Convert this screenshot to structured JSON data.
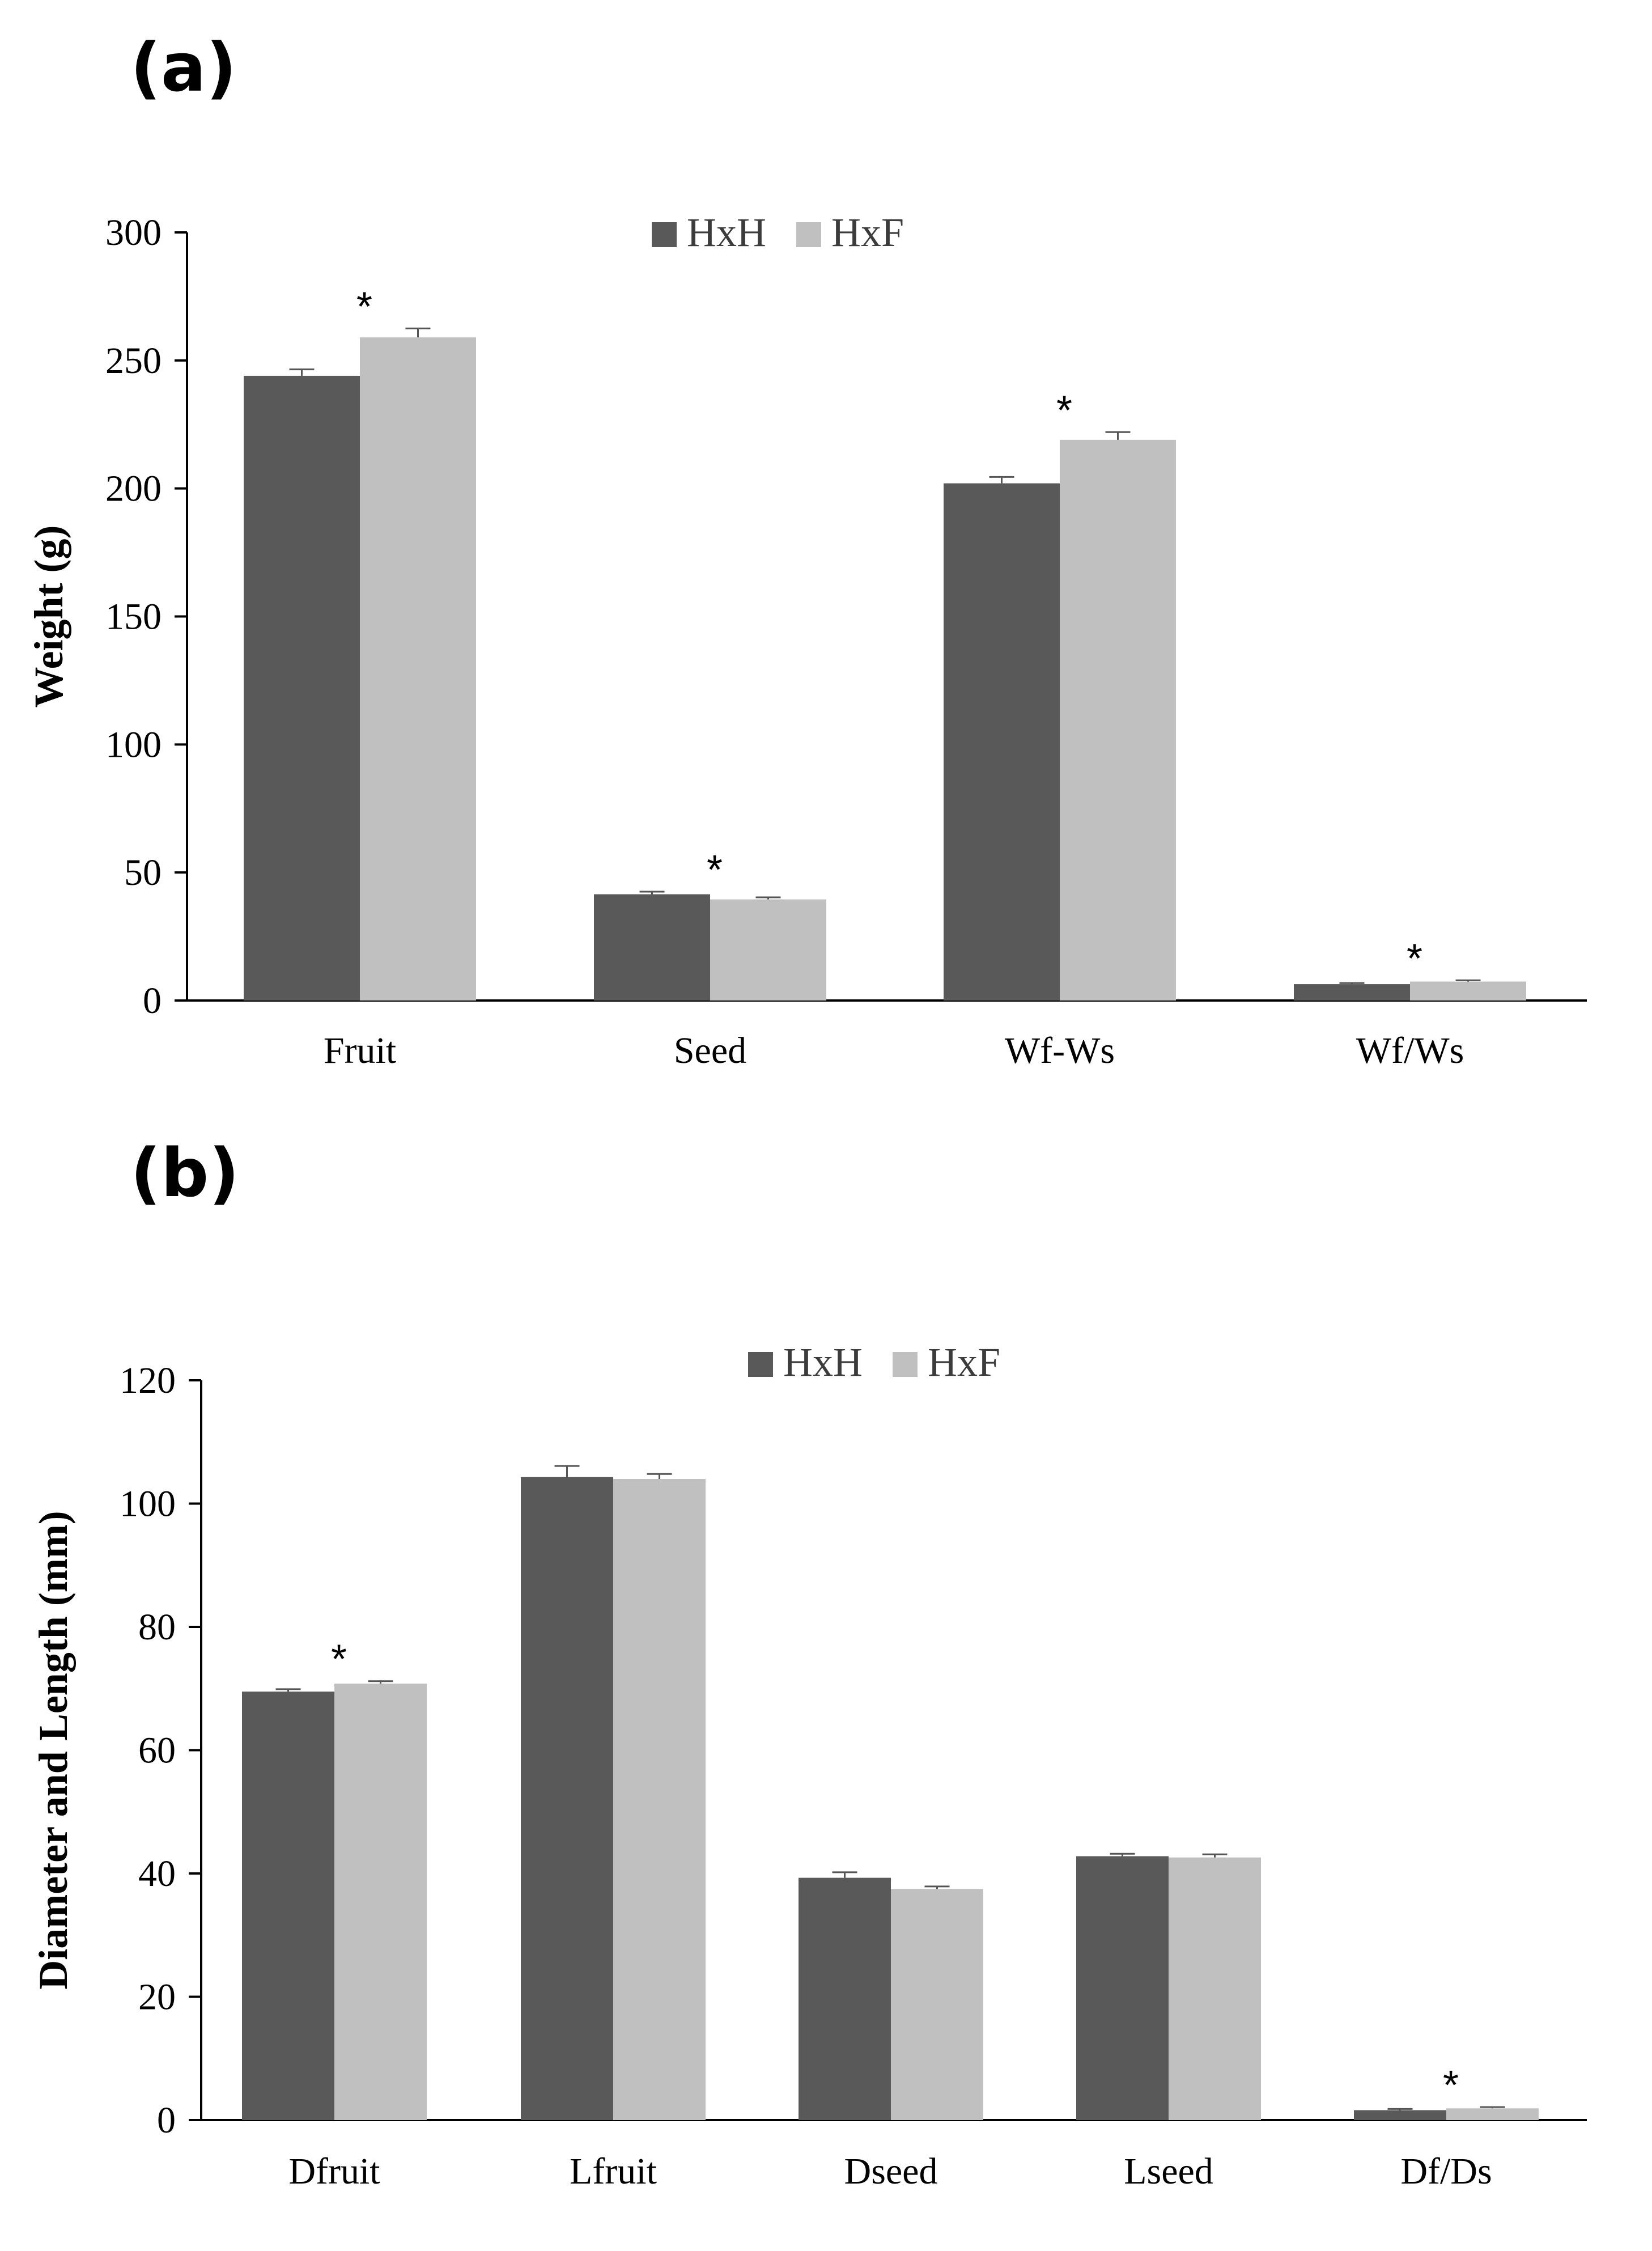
{
  "chart_data": [
    {
      "type": "bar",
      "panel_label": "(a)",
      "ylabel": "Weight (g)",
      "xlabel": "",
      "ylim": [
        0,
        300
      ],
      "yticks": [
        0,
        50,
        100,
        150,
        200,
        250,
        300
      ],
      "categories": [
        "Fruit",
        "Seed",
        "Wf-Ws",
        "Wf/Ws"
      ],
      "series": [
        {
          "name": "HxH",
          "color": "#595959",
          "values": [
            244,
            41.5,
            202,
            6.4
          ],
          "errors": [
            2.5,
            1.0,
            2.5,
            0.4
          ]
        },
        {
          "name": "HxF",
          "color": "#c0c0c0",
          "values": [
            259,
            39.5,
            219,
            7.4
          ],
          "errors": [
            3.5,
            0.8,
            3.0,
            0.5
          ]
        }
      ],
      "annotations": [
        {
          "category": "Fruit",
          "text": "*"
        },
        {
          "category": "Seed",
          "text": "*"
        },
        {
          "category": "Wf-Ws",
          "text": "*"
        },
        {
          "category": "Wf/Ws",
          "text": "*"
        }
      ],
      "legend_position": "top-center",
      "grid": false
    },
    {
      "type": "bar",
      "panel_label": "(b)",
      "ylabel": "Diameter and Length (mm)",
      "xlabel": "",
      "ylim": [
        0,
        120
      ],
      "yticks": [
        0,
        20,
        40,
        60,
        80,
        100,
        120
      ],
      "categories": [
        "Dfruit",
        "Lfruit",
        "Dseed",
        "Lseed",
        "Df/Ds"
      ],
      "series": [
        {
          "name": "HxH",
          "color": "#595959",
          "values": [
            69.5,
            104.3,
            39.3,
            42.8,
            1.6
          ],
          "errors": [
            0.4,
            1.8,
            0.9,
            0.4,
            0.2
          ]
        },
        {
          "name": "HxF",
          "color": "#c0c0c0",
          "values": [
            70.8,
            104.0,
            37.5,
            42.6,
            1.9
          ],
          "errors": [
            0.4,
            0.8,
            0.4,
            0.5,
            0.2
          ]
        }
      ],
      "annotations": [
        {
          "category": "Dfruit",
          "text": "*"
        },
        {
          "category": "Df/Ds",
          "text": "*"
        }
      ],
      "legend_position": "top-center",
      "grid": false
    }
  ]
}
